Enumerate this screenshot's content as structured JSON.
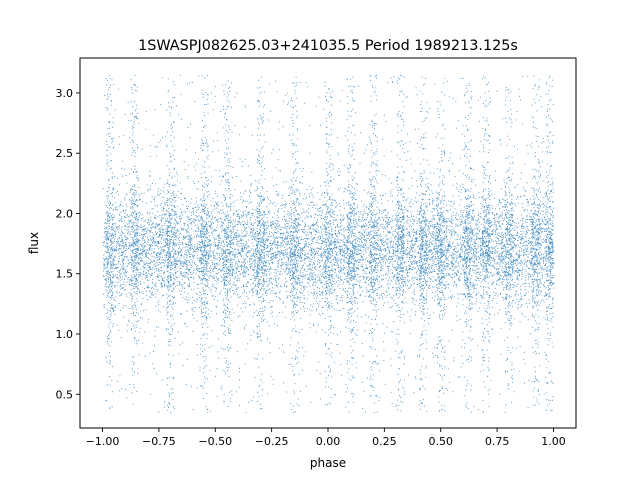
{
  "chart_data": {
    "type": "scatter",
    "title": "1SWASPJ082625.03+241035.5 Period 1989213.125s",
    "xlabel": "phase",
    "ylabel": "flux",
    "xlim": [
      -1.1,
      1.1
    ],
    "ylim": [
      0.22,
      3.29
    ],
    "x_ticks": [
      -1.0,
      -0.75,
      -0.5,
      -0.25,
      0.0,
      0.25,
      0.5,
      0.75,
      1.0
    ],
    "x_tick_labels": [
      "−1.00",
      "−0.75",
      "−0.50",
      "−0.25",
      "0.00",
      "0.25",
      "0.50",
      "0.75",
      "1.00"
    ],
    "y_ticks": [
      0.5,
      1.0,
      1.5,
      2.0,
      2.5,
      3.0
    ],
    "y_tick_labels": [
      "0.5",
      "1.0",
      "1.5",
      "2.0",
      "2.5",
      "3.0"
    ],
    "grid": false,
    "legend": "none",
    "series": [
      {
        "marker_color": "#1f77b4",
        "phase_range": [
          -1.0,
          1.0
        ],
        "flux_core_range": [
          1.3,
          2.2
        ],
        "flux_median": 1.7,
        "flux_outlier_range": [
          0.35,
          3.15
        ],
        "column_positions": [
          -0.97,
          -0.86,
          -0.7,
          -0.55,
          -0.45,
          -0.3,
          -0.15,
          0.0,
          0.1,
          0.2,
          0.32,
          0.42,
          0.5,
          0.62,
          0.7,
          0.8,
          0.92,
          0.98
        ]
      }
    ]
  }
}
